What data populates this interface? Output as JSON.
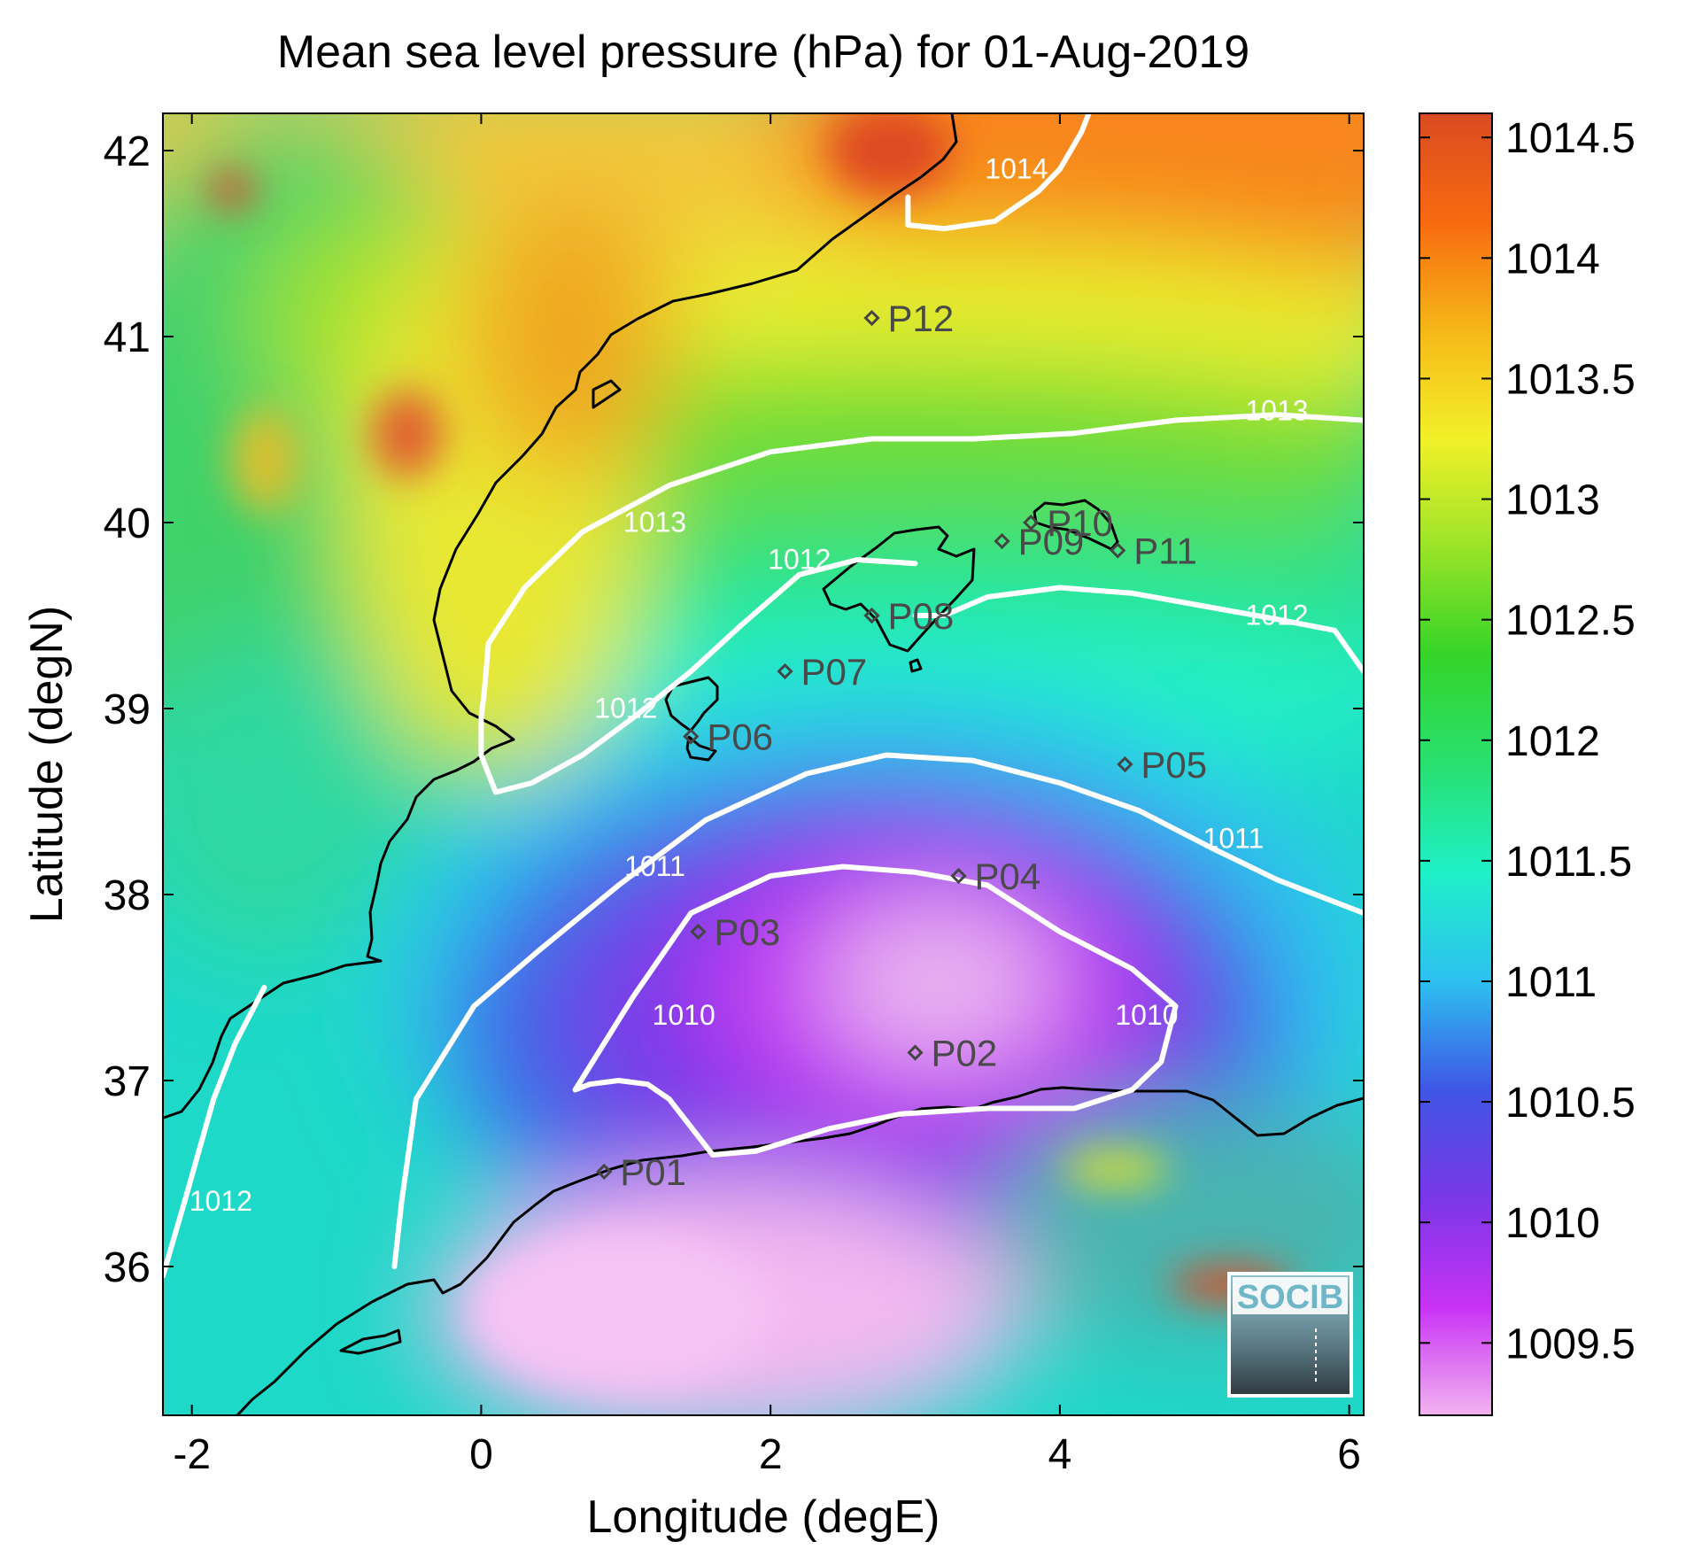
{
  "title": "Mean sea level pressure (hPa) for 01-Aug-2019",
  "chart_data": {
    "type": "heatmap",
    "title": "Mean sea level pressure (hPa) for 01-Aug-2019",
    "xlabel": "Longitude (degE)",
    "ylabel": "Latitude (degN)",
    "xlim": [
      -2.2,
      6.1
    ],
    "ylim": [
      35.2,
      42.2
    ],
    "x_ticks": [
      -2,
      0,
      2,
      4,
      6
    ],
    "y_ticks": [
      36,
      37,
      38,
      39,
      40,
      41,
      42
    ],
    "x_tick_labels": [
      "-2",
      "0",
      "2",
      "4",
      "6"
    ],
    "y_tick_labels": [
      "36",
      "37",
      "38",
      "39",
      "40",
      "41",
      "42"
    ],
    "colorbar": {
      "min": 1009.2,
      "max": 1014.6,
      "ticks": [
        1009.5,
        1010,
        1010.5,
        1011,
        1011.5,
        1012,
        1012.5,
        1013,
        1013.5,
        1014,
        1014.5
      ],
      "tick_labels": [
        "1009.5",
        "1010",
        "1010.5",
        "1011",
        "1011.5",
        "1012",
        "1012.5",
        "1013",
        "1013.5",
        "1014",
        "1014.5"
      ],
      "colors": [
        "#f2b3f0",
        "#c832f4",
        "#7a37e8",
        "#3f56e6",
        "#2dc0f0",
        "#1ef0c8",
        "#28e070",
        "#34d428",
        "#9ae428",
        "#f2f028",
        "#f6b818",
        "#f86a10",
        "#da4a22"
      ]
    },
    "contours": [
      {
        "level": 1010,
        "label": "1010",
        "label_positions": [
          [
            1.4,
            37.3
          ],
          [
            4.6,
            37.3
          ]
        ],
        "points": [
          [
            0.65,
            36.95
          ],
          [
            1.05,
            37.45
          ],
          [
            1.45,
            37.9
          ],
          [
            2.0,
            38.1
          ],
          [
            2.5,
            38.15
          ],
          [
            3.0,
            38.12
          ],
          [
            3.5,
            38.05
          ],
          [
            4.0,
            37.8
          ],
          [
            4.5,
            37.6
          ],
          [
            4.8,
            37.4
          ],
          [
            4.7,
            37.1
          ],
          [
            4.5,
            36.95
          ],
          [
            4.1,
            36.85
          ],
          [
            3.5,
            36.85
          ],
          [
            2.9,
            36.82
          ],
          [
            2.4,
            36.74
          ],
          [
            1.9,
            36.62
          ],
          [
            1.6,
            36.6
          ],
          [
            1.3,
            36.9
          ],
          [
            1.15,
            36.98
          ],
          [
            0.95,
            37.0
          ],
          [
            0.75,
            36.98
          ],
          [
            0.65,
            36.95
          ]
        ]
      },
      {
        "level": 1011,
        "label": "1011",
        "label_positions": [
          [
            1.2,
            38.1
          ],
          [
            5.2,
            38.25
          ]
        ],
        "points": [
          [
            -0.6,
            36.0
          ],
          [
            -0.55,
            36.35
          ],
          [
            -0.45,
            36.9
          ],
          [
            -0.05,
            37.4
          ],
          [
            0.4,
            37.7
          ],
          [
            0.95,
            38.05
          ],
          [
            1.55,
            38.4
          ],
          [
            2.25,
            38.65
          ],
          [
            2.8,
            38.75
          ],
          [
            3.4,
            38.72
          ],
          [
            4.0,
            38.6
          ],
          [
            4.55,
            38.45
          ],
          [
            5.05,
            38.25
          ],
          [
            5.5,
            38.08
          ],
          [
            6.1,
            37.9
          ]
        ]
      },
      {
        "level": 1012,
        "label": "1012",
        "label_positions": [
          [
            1.0,
            38.95
          ],
          [
            2.2,
            39.75
          ],
          [
            5.5,
            39.45
          ],
          [
            -1.8,
            36.3
          ]
        ],
        "points": [
          [
            -1.5,
            37.5
          ],
          [
            -1.7,
            37.2
          ],
          [
            -1.85,
            36.9
          ],
          [
            -2.05,
            36.35
          ],
          [
            -2.2,
            35.95
          ]
        ]
      },
      {
        "level": 1012,
        "label": "1012",
        "label_positions": [],
        "points": [
          [
            6.1,
            39.2
          ],
          [
            5.9,
            39.42
          ],
          [
            5.5,
            39.48
          ],
          [
            5.0,
            39.55
          ],
          [
            4.5,
            39.62
          ],
          [
            4.0,
            39.65
          ],
          [
            3.5,
            39.6
          ],
          [
            3.2,
            39.5
          ],
          [
            3.0,
            39.5
          ]
        ]
      },
      {
        "level": 1012,
        "label": "1012",
        "label_positions": [],
        "points": [
          [
            3.0,
            39.78
          ],
          [
            2.6,
            39.8
          ],
          [
            2.2,
            39.72
          ],
          [
            1.8,
            39.45
          ],
          [
            1.45,
            39.2
          ],
          [
            1.05,
            38.95
          ],
          [
            0.7,
            38.75
          ],
          [
            0.35,
            38.6
          ],
          [
            0.1,
            38.55
          ],
          [
            0.0,
            38.75
          ],
          [
            0.0,
            38.95
          ],
          [
            0.02,
            39.08
          ]
        ]
      },
      {
        "level": 1013,
        "label": "1013",
        "label_positions": [
          [
            1.2,
            39.95
          ],
          [
            5.5,
            40.55
          ]
        ],
        "points": [
          [
            0.02,
            39.08
          ],
          [
            0.05,
            39.35
          ],
          [
            0.3,
            39.65
          ],
          [
            0.7,
            39.95
          ],
          [
            1.3,
            40.2
          ],
          [
            2.0,
            40.38
          ],
          [
            2.7,
            40.45
          ],
          [
            3.4,
            40.45
          ],
          [
            4.1,
            40.48
          ],
          [
            4.8,
            40.55
          ],
          [
            5.5,
            40.58
          ],
          [
            6.1,
            40.55
          ]
        ]
      },
      {
        "level": 1014,
        "label": "1014",
        "label_positions": [
          [
            3.7,
            41.85
          ]
        ],
        "points": [
          [
            2.95,
            41.75
          ],
          [
            2.95,
            41.6
          ],
          [
            3.2,
            41.58
          ],
          [
            3.55,
            41.62
          ],
          [
            3.85,
            41.78
          ],
          [
            4.0,
            41.9
          ],
          [
            4.15,
            42.1
          ],
          [
            4.2,
            42.2
          ]
        ]
      }
    ],
    "points": [
      {
        "name": "P01",
        "lon": 0.85,
        "lat": 36.51
      },
      {
        "name": "P02",
        "lon": 3.0,
        "lat": 37.15
      },
      {
        "name": "P03",
        "lon": 1.5,
        "lat": 37.8
      },
      {
        "name": "P04",
        "lon": 3.3,
        "lat": 38.1
      },
      {
        "name": "P05",
        "lon": 4.45,
        "lat": 38.7
      },
      {
        "name": "P06",
        "lon": 1.45,
        "lat": 38.85
      },
      {
        "name": "P07",
        "lon": 2.1,
        "lat": 39.2
      },
      {
        "name": "P08",
        "lon": 2.7,
        "lat": 39.5
      },
      {
        "name": "P09",
        "lon": 3.6,
        "lat": 39.9
      },
      {
        "name": "P10",
        "lon": 3.8,
        "lat": 40.0
      },
      {
        "name": "P11",
        "lon": 4.4,
        "lat": 39.85
      },
      {
        "name": "P12",
        "lon": 2.7,
        "lat": 41.1
      }
    ],
    "logo_text": "SOCIB"
  }
}
